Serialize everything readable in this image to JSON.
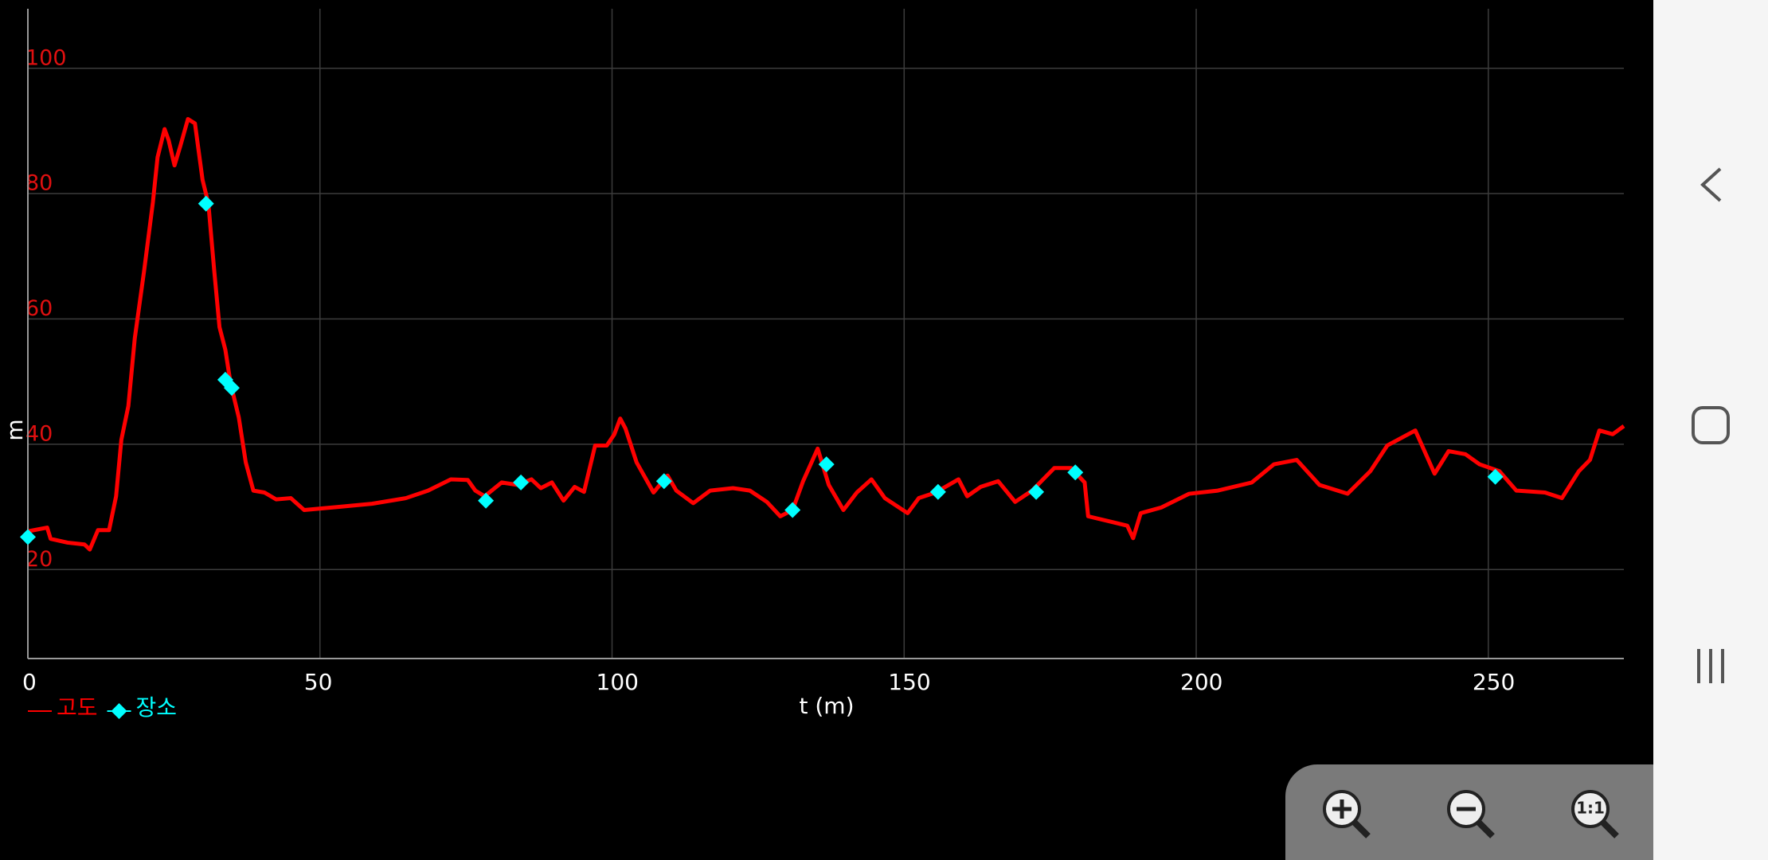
{
  "chart_data": {
    "type": "line",
    "x_label": "t (m)",
    "y_label": "m",
    "xlim": [
      0,
      273.2
    ],
    "ylim": [
      5.8,
      109.5
    ],
    "xticks": [
      0,
      50,
      100,
      150,
      200,
      250
    ],
    "yticks": [
      20,
      40,
      60,
      80,
      100
    ],
    "grid": true,
    "series": [
      {
        "name": "고도",
        "color": "#ff0000",
        "x": [
          0,
          3.3,
          3.9,
          6.8,
          9.7,
          10.6,
          12,
          13.9,
          15.1,
          16,
          17.2,
          18.3,
          19.9,
          21.4,
          22.2,
          23.4,
          24.1,
          25.1,
          26.1,
          27.4,
          28.6,
          29.9,
          30.9,
          31.9,
          32.8,
          33.8,
          34.7,
          36.1,
          37.3,
          38.6,
          40.5,
          42.5,
          45,
          47.3,
          53.1,
          58.9,
          64.7,
          68.5,
          72.4,
          75.3,
          76.6,
          78.2,
          81.1,
          83.9,
          86.2,
          87.8,
          89.7,
          91.7,
          93.6,
          95.2,
          97.1,
          99.1,
          100.4,
          101.4,
          102.3,
          104.2,
          107.1,
          109.5,
          111,
          113.9,
          116.8,
          120.7,
          123.6,
          126.5,
          128.8,
          130.9,
          132.7,
          135.2,
          137.1,
          139.6,
          141.9,
          144.4,
          146.7,
          150.6,
          152.5,
          155.4,
          159.3,
          160.8,
          163.1,
          166.1,
          169,
          171.9,
          175.7,
          178.6,
          180.9,
          181.5,
          188.2,
          189.2,
          190.5,
          194,
          198.8,
          203.7,
          209.5,
          213.3,
          217.2,
          221.1,
          225.9,
          229.8,
          232.7,
          237.5,
          240.8,
          243.2,
          246.1,
          248.5,
          251.9,
          254.8,
          259.7,
          262.6,
          265.5,
          267.4,
          269,
          271.3,
          273.2
        ],
        "values": [
          26.1,
          26.7,
          24.9,
          24.3,
          24,
          23.2,
          26.3,
          26.3,
          31.7,
          40.7,
          46.1,
          56.9,
          67.7,
          78.6,
          85.8,
          90.3,
          88.5,
          84.5,
          87.6,
          91.9,
          91.2,
          82.2,
          78.4,
          67.7,
          58.7,
          55.1,
          49.7,
          44.3,
          37.1,
          32.6,
          32.3,
          31.2,
          31.4,
          29.5,
          30,
          30.5,
          31.4,
          32.6,
          34.4,
          34.3,
          32.6,
          31.7,
          33.9,
          33.5,
          34.4,
          33,
          33.9,
          31,
          33.2,
          32.4,
          39.8,
          39.8,
          41.6,
          44.1,
          42.5,
          37.1,
          32.3,
          35,
          32.6,
          30.6,
          32.6,
          33,
          32.6,
          30.8,
          28.5,
          29.5,
          34.1,
          39.3,
          33.5,
          29.5,
          32.3,
          34.4,
          31.4,
          29,
          31.4,
          32.3,
          34.4,
          31.7,
          33.2,
          34.1,
          30.8,
          32.6,
          36.2,
          36.2,
          33.9,
          28.5,
          27,
          25,
          29,
          29.9,
          32.1,
          32.6,
          33.9,
          36.8,
          37.5,
          33.5,
          32.1,
          35.7,
          39.8,
          42.2,
          35.3,
          38.9,
          38.4,
          36.8,
          35.7,
          32.6,
          32.3,
          31.4,
          35.7,
          37.5,
          42.2,
          41.6,
          42.9
        ]
      },
      {
        "name": "장소",
        "type": "scatter",
        "color": "#00ffff",
        "x": [
          0,
          30.5,
          33.8,
          34.9,
          78.4,
          84.4,
          108.9,
          130.9,
          136.7,
          155.8,
          172.6,
          179.3,
          251.2
        ],
        "values": [
          25.2,
          78.4,
          50.3,
          49,
          31,
          33.9,
          34.1,
          29.5,
          36.8,
          32.4,
          32.4,
          35.5,
          34.8
        ]
      }
    ]
  },
  "controls": {
    "reset_zoom": "1:1"
  }
}
